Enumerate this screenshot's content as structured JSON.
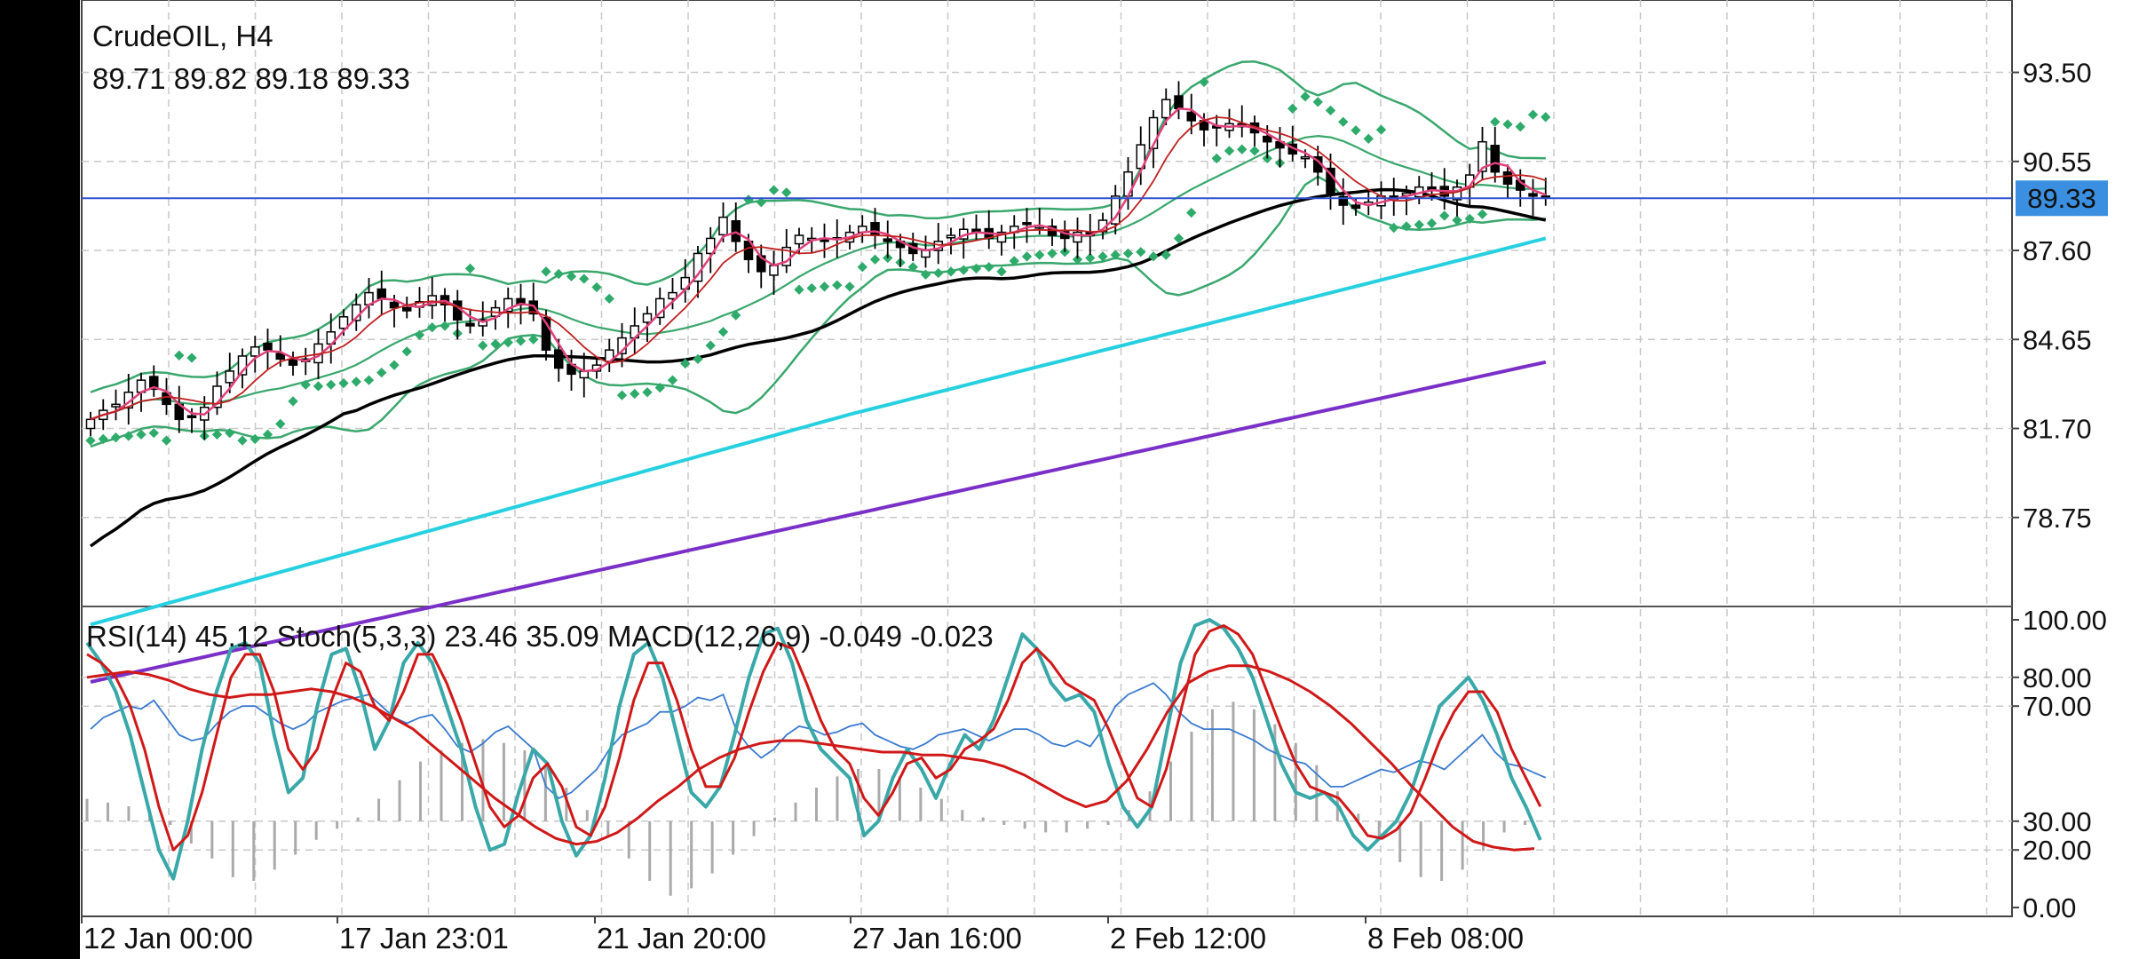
{
  "header": {
    "symbol": "CrudeOIL, H4",
    "ohlc": "89.71 89.82 89.18 89.33"
  },
  "indicators_label": "RSI(14) 45.12 Stoch(5,3,3) 23.46 35.09 MACD(12,26,9) -0.049 -0.023",
  "colors": {
    "candle_up": "#ffffff",
    "candle_down": "#000000",
    "bollinger": "#3aa76d",
    "sar": "#2eaa6a",
    "ma_fast": "#e0407a",
    "ma_mid": "#c02020",
    "ma_50": "#000000",
    "ma_100": "#27d0e0",
    "ma_200": "#7a30c8",
    "price_line": "#3050d0",
    "rsi": "#3a7ad0",
    "stoch_k": "#3aa8a8",
    "stoch_d": "#d01818",
    "macd_hist": "#aaaaaa"
  },
  "chart_data": [
    {
      "type": "candlestick",
      "title": "CrudeOIL, H4",
      "price_axis": {
        "ticks": [
          "93.50",
          "90.55",
          "87.60",
          "84.65",
          "81.70",
          "78.75"
        ],
        "ylim": [
          75.8,
          95.9
        ]
      },
      "current_price": {
        "value": 89.33,
        "label": "89.33"
      },
      "time_axis": {
        "ticks": [
          "12 Jan 00:00",
          "17 Jan 23:01",
          "21 Jan 20:00",
          "27 Jan 16:00",
          "2 Feb 12:00",
          "8 Feb 08:00"
        ]
      },
      "grid": true,
      "close": [
        82.0,
        82.3,
        82.5,
        82.9,
        83.3,
        83.0,
        82.5,
        82.0,
        82.1,
        82.4,
        83.1,
        83.6,
        84.1,
        84.4,
        84.3,
        84.0,
        83.8,
        84.0,
        84.5,
        84.9,
        85.4,
        85.8,
        86.2,
        86.0,
        85.7,
        85.6,
        85.9,
        86.1,
        85.8,
        85.3,
        85.1,
        85.3,
        85.7,
        86.0,
        85.8,
        85.5,
        84.3,
        83.7,
        83.5,
        83.6,
        83.8,
        84.3,
        84.7,
        85.1,
        85.5,
        86.0,
        86.2,
        86.7,
        87.5,
        88.0,
        88.7,
        87.9,
        87.3,
        86.9,
        87.1,
        87.7,
        88.1,
        88.0,
        87.9,
        88.0,
        88.2,
        88.4,
        88.1,
        87.9,
        87.7,
        87.5,
        87.6,
        87.9,
        88.1,
        88.3,
        88.2,
        88.0,
        88.2,
        88.4,
        88.5,
        88.4,
        88.1,
        88.0,
        88.2,
        88.1,
        88.6,
        89.4,
        90.2,
        91.1,
        92.0,
        92.6,
        92.3,
        91.9,
        91.6,
        91.7,
        91.8,
        91.7,
        91.5,
        91.2,
        91.0,
        90.8,
        90.7,
        90.2,
        89.5,
        89.1,
        89.0,
        89.2,
        89.4,
        89.3,
        89.5,
        89.7,
        89.6,
        89.4,
        89.7,
        90.1,
        91.2,
        90.2,
        89.8,
        89.6,
        89.4,
        89.33
      ],
      "series": [
        {
          "name": "RSI(14)",
          "last": 45.12
        },
        {
          "name": "Stoch %K",
          "last": 23.46
        },
        {
          "name": "Stoch %D",
          "last": 35.09
        },
        {
          "name": "MACD",
          "last": -0.049
        },
        {
          "name": "MACD signal",
          "last": -0.023
        }
      ],
      "indicator_axis": {
        "ticks": [
          "100.00",
          "80.00",
          "70.00",
          "30.00",
          "20.00",
          "0.00"
        ],
        "ylim": [
          0,
          100
        ]
      },
      "rsi": [
        62,
        66,
        68,
        70,
        69,
        72,
        66,
        60,
        58,
        59,
        64,
        68,
        70,
        70,
        67,
        64,
        62,
        64,
        68,
        70,
        72,
        73,
        74,
        70,
        66,
        64,
        66,
        67,
        62,
        56,
        54,
        57,
        61,
        63,
        59,
        55,
        42,
        38,
        40,
        44,
        48,
        55,
        60,
        62,
        64,
        68,
        68,
        70,
        73,
        72,
        74,
        62,
        56,
        52,
        55,
        60,
        63,
        62,
        60,
        61,
        63,
        64,
        60,
        58,
        56,
        55,
        57,
        60,
        61,
        62,
        60,
        58,
        60,
        62,
        62,
        60,
        57,
        56,
        58,
        56,
        62,
        70,
        74,
        76,
        78,
        74,
        68,
        64,
        62,
        62,
        62,
        60,
        58,
        55,
        53,
        51,
        50,
        46,
        42,
        42,
        44,
        46,
        48,
        47,
        49,
        51,
        50,
        48,
        52,
        56,
        60,
        54,
        50,
        49,
        47,
        45.12
      ],
      "stoch_k": [
        92,
        85,
        75,
        60,
        40,
        20,
        10,
        30,
        55,
        75,
        90,
        92,
        85,
        60,
        40,
        45,
        70,
        88,
        90,
        75,
        55,
        65,
        85,
        92,
        85,
        70,
        55,
        35,
        20,
        22,
        40,
        55,
        50,
        30,
        18,
        25,
        45,
        70,
        88,
        92,
        80,
        60,
        40,
        35,
        42,
        60,
        80,
        95,
        97,
        85,
        65,
        55,
        50,
        45,
        25,
        30,
        45,
        55,
        48,
        38,
        50,
        60,
        55,
        65,
        80,
        95,
        90,
        78,
        72,
        74,
        68,
        50,
        35,
        28,
        35,
        60,
        85,
        98,
        100,
        97,
        90,
        80,
        65,
        50,
        40,
        38,
        40,
        35,
        25,
        20,
        25,
        30,
        40,
        55,
        70,
        75,
        80,
        72,
        60,
        45,
        35,
        23.46
      ],
      "stoch_d": [
        88,
        85,
        80,
        70,
        55,
        35,
        20,
        25,
        40,
        60,
        80,
        88,
        88,
        75,
        55,
        48,
        55,
        72,
        85,
        82,
        70,
        65,
        75,
        88,
        88,
        78,
        65,
        50,
        35,
        28,
        32,
        45,
        50,
        42,
        28,
        25,
        35,
        52,
        72,
        85,
        85,
        72,
        55,
        42,
        42,
        52,
        68,
        82,
        92,
        90,
        78,
        65,
        55,
        50,
        38,
        32,
        40,
        50,
        52,
        45,
        48,
        55,
        58,
        62,
        72,
        85,
        90,
        85,
        78,
        75,
        72,
        62,
        50,
        38,
        35,
        48,
        68,
        88,
        96,
        98,
        95,
        88,
        75,
        62,
        50,
        42,
        40,
        38,
        32,
        25,
        24,
        27,
        33,
        45,
        58,
        68,
        75,
        75,
        68,
        55,
        45,
        35.09
      ],
      "rsi_slow": [
        80,
        81,
        82,
        81,
        79,
        76,
        74,
        73,
        74,
        74,
        75,
        76,
        75,
        73,
        70,
        66,
        62,
        56,
        50,
        44,
        38,
        33,
        28,
        24,
        22,
        23,
        26,
        31,
        37,
        42,
        48,
        52,
        55,
        57,
        58,
        58,
        57,
        56,
        55,
        54,
        54,
        53,
        53,
        52,
        51,
        49,
        46,
        42,
        38,
        35,
        37,
        44,
        55,
        68,
        78,
        82,
        84,
        84,
        82,
        79,
        75,
        70,
        64,
        57,
        50,
        42,
        35,
        28,
        23,
        21,
        20,
        20.5
      ],
      "macd_hist": [
        0.6,
        0.5,
        0.4,
        0.2,
        -0.1,
        -0.6,
        -1,
        -1.5,
        -1.6,
        -1.3,
        -0.9,
        -0.5,
        -0.2,
        0.1,
        0.6,
        1.1,
        1.6,
        1.9,
        2.1,
        2.2,
        2.1,
        1.9,
        1.5,
        0.9,
        0.3,
        -0.4,
        -1.0,
        -1.6,
        -2.0,
        -1.8,
        -1.4,
        -0.9,
        -0.4,
        0.1,
        0.5,
        0.9,
        1.2,
        1.4,
        1.4,
        1.2,
        0.9,
        0.6,
        0.3,
        0.1,
        -0.1,
        -0.2,
        -0.3,
        -0.3,
        -0.2,
        -0.1,
        0.3,
        0.8,
        1.6,
        2.4,
        3.0,
        3.2,
        3.0,
        2.6,
        2.1,
        1.5,
        0.8,
        0.2,
        -0.5,
        -1.1,
        -1.5,
        -1.6,
        -1.3,
        -0.8,
        -0.3,
        -0.1
      ]
    }
  ]
}
